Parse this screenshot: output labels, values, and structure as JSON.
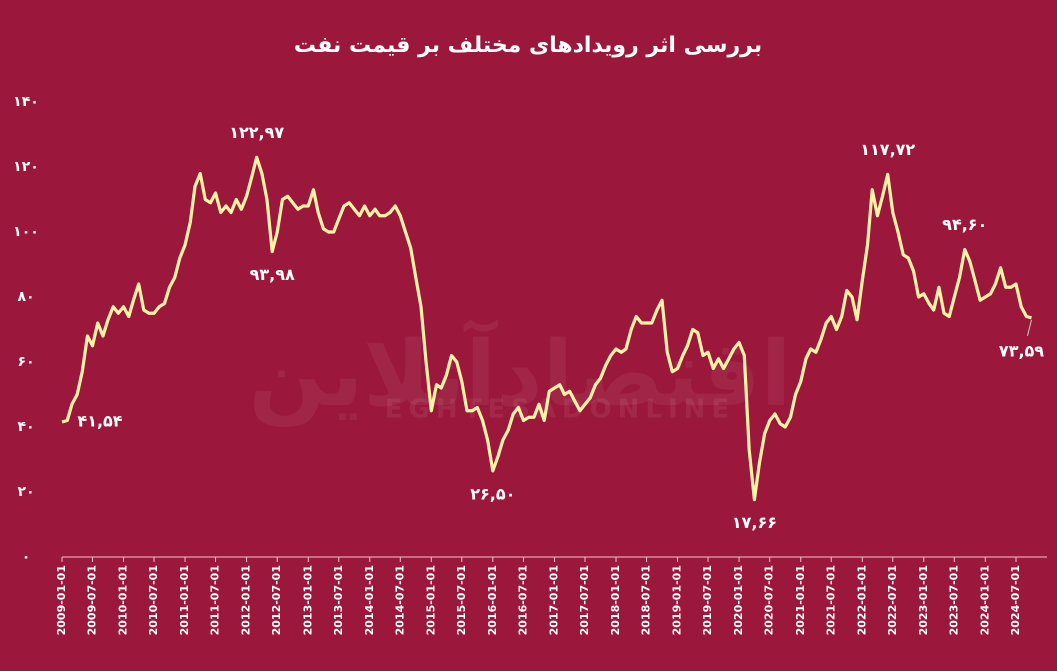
{
  "chart_data": {
    "type": "line",
    "title": "بررسی اثر رویدادهای مختلف بر قیمت نفت",
    "watermark": "اقتصادآنلاین",
    "watermark_en": "EGHTESADONLINE",
    "x": [
      "2009-01-01",
      "2009-02-01",
      "2009-03-01",
      "2009-04-01",
      "2009-05-01",
      "2009-06-01",
      "2009-07-01",
      "2009-08-01",
      "2009-09-01",
      "2009-10-01",
      "2009-11-01",
      "2009-12-01",
      "2010-01-01",
      "2010-02-01",
      "2010-03-01",
      "2010-04-01",
      "2010-05-01",
      "2010-06-01",
      "2010-07-01",
      "2010-08-01",
      "2010-09-01",
      "2010-10-01",
      "2010-11-01",
      "2010-12-01",
      "2011-01-01",
      "2011-02-01",
      "2011-03-01",
      "2011-04-01",
      "2011-05-01",
      "2011-06-01",
      "2011-07-01",
      "2011-08-01",
      "2011-09-01",
      "2011-10-01",
      "2011-11-01",
      "2011-12-01",
      "2012-01-01",
      "2012-02-01",
      "2012-03-01",
      "2012-04-01",
      "2012-05-01",
      "2012-06-01",
      "2012-07-01",
      "2012-08-01",
      "2012-09-01",
      "2012-10-01",
      "2012-11-01",
      "2012-12-01",
      "2013-01-01",
      "2013-02-01",
      "2013-03-01",
      "2013-04-01",
      "2013-05-01",
      "2013-06-01",
      "2013-07-01",
      "2013-08-01",
      "2013-09-01",
      "2013-10-01",
      "2013-11-01",
      "2013-12-01",
      "2014-01-01",
      "2014-02-01",
      "2014-03-01",
      "2014-04-01",
      "2014-05-01",
      "2014-06-01",
      "2014-07-01",
      "2014-08-01",
      "2014-09-01",
      "2014-10-01",
      "2014-11-01",
      "2014-12-01",
      "2015-01-01",
      "2015-02-01",
      "2015-03-01",
      "2015-04-01",
      "2015-05-01",
      "2015-06-01",
      "2015-07-01",
      "2015-08-01",
      "2015-09-01",
      "2015-10-01",
      "2015-11-01",
      "2015-12-01",
      "2016-01-01",
      "2016-02-01",
      "2016-03-01",
      "2016-04-01",
      "2016-05-01",
      "2016-06-01",
      "2016-07-01",
      "2016-08-01",
      "2016-09-01",
      "2016-10-01",
      "2016-11-01",
      "2016-12-01",
      "2017-01-01",
      "2017-02-01",
      "2017-03-01",
      "2017-04-01",
      "2017-05-01",
      "2017-06-01",
      "2017-07-01",
      "2017-08-01",
      "2017-09-01",
      "2017-10-01",
      "2017-11-01",
      "2017-12-01",
      "2018-01-01",
      "2018-02-01",
      "2018-03-01",
      "2018-04-01",
      "2018-05-01",
      "2018-06-01",
      "2018-07-01",
      "2018-08-01",
      "2018-09-01",
      "2018-10-01",
      "2018-11-01",
      "2018-12-01",
      "2019-01-01",
      "2019-02-01",
      "2019-03-01",
      "2019-04-01",
      "2019-05-01",
      "2019-06-01",
      "2019-07-01",
      "2019-08-01",
      "2019-09-01",
      "2019-10-01",
      "2019-11-01",
      "2019-12-01",
      "2020-01-01",
      "2020-02-01",
      "2020-03-01",
      "2020-04-01",
      "2020-05-01",
      "2020-06-01",
      "2020-07-01",
      "2020-08-01",
      "2020-09-01",
      "2020-10-01",
      "2020-11-01",
      "2020-12-01",
      "2021-01-01",
      "2021-02-01",
      "2021-03-01",
      "2021-04-01",
      "2021-05-01",
      "2021-06-01",
      "2021-07-01",
      "2021-08-01",
      "2021-09-01",
      "2021-10-01",
      "2021-11-01",
      "2021-12-01",
      "2022-01-01",
      "2022-02-01",
      "2022-03-01",
      "2022-04-01",
      "2022-05-01",
      "2022-06-01",
      "2022-07-01",
      "2022-08-01",
      "2022-09-01",
      "2022-10-01",
      "2022-11-01",
      "2022-12-01",
      "2023-01-01",
      "2023-02-01",
      "2023-03-01",
      "2023-04-01",
      "2023-05-01",
      "2023-06-01",
      "2023-07-01",
      "2023-08-01",
      "2023-09-01",
      "2023-10-01",
      "2023-11-01",
      "2023-12-01",
      "2024-01-01",
      "2024-02-01",
      "2024-03-01",
      "2024-04-01",
      "2024-05-01",
      "2024-06-01",
      "2024-07-01",
      "2024-08-01",
      "2024-09-01",
      "2024-10-01"
    ],
    "series": [
      {
        "color": "#fff3a8",
        "values": [
          41.54,
          42,
          47,
          50,
          57,
          68,
          65,
          72,
          68,
          73,
          77,
          75,
          77,
          74,
          79,
          84,
          76,
          75,
          75,
          77,
          78,
          83,
          86,
          92,
          96,
          103,
          114,
          118,
          110,
          109,
          112,
          106,
          108,
          106,
          110,
          107,
          111,
          117,
          122.97,
          118,
          110,
          93.98,
          100,
          110,
          111,
          109,
          107,
          108,
          108,
          113,
          106,
          101,
          100,
          100,
          104,
          108,
          109,
          107,
          105,
          108,
          105,
          107,
          105,
          105,
          106,
          108,
          105,
          100,
          95,
          86,
          77,
          60,
          45,
          53,
          52,
          56,
          62,
          60,
          54,
          45,
          45,
          46,
          42,
          36,
          26.5,
          31,
          36,
          39,
          44,
          46,
          42,
          43,
          43,
          47,
          42,
          51,
          52,
          53,
          50,
          51,
          48,
          45,
          47,
          49,
          53,
          55,
          59,
          62,
          64,
          63,
          64,
          70,
          74,
          72,
          72,
          72,
          76,
          79,
          63,
          57,
          58,
          62,
          65,
          70,
          69,
          62,
          63,
          58,
          61,
          58,
          61,
          64,
          66,
          62,
          33,
          17.66,
          29,
          38,
          42,
          44,
          41,
          40,
          43,
          50,
          54,
          61,
          64,
          63,
          67,
          72,
          74,
          70,
          74,
          82,
          80,
          73,
          85,
          96,
          113,
          105,
          111,
          117.72,
          106,
          100,
          93,
          92,
          88,
          80,
          81,
          78,
          76,
          83,
          75,
          74,
          80,
          86,
          94.6,
          91,
          85,
          79,
          80,
          81,
          84,
          89,
          83,
          83,
          84,
          77,
          74,
          73.59
        ],
        "value_labels": [
          "۴۱,۵۴",
          null,
          null,
          null,
          null,
          null,
          null,
          null,
          null,
          null,
          null,
          null,
          null,
          null,
          null,
          null,
          null,
          null,
          null,
          null,
          null,
          null,
          null,
          null,
          null,
          null,
          null,
          null,
          null,
          null,
          null,
          null,
          null,
          null,
          null,
          null,
          null,
          null,
          "۱۲۲,۹۷",
          null,
          null,
          "۹۳,۹۸",
          null,
          null,
          null,
          null,
          null,
          null,
          null,
          null,
          null,
          null,
          null,
          null,
          null,
          null,
          null,
          null,
          null,
          null,
          null,
          null,
          null,
          null,
          null,
          null,
          null,
          null,
          null,
          null,
          null,
          null,
          null,
          null,
          null,
          null,
          null,
          null,
          null,
          null,
          null,
          null,
          null,
          null,
          "۲۶,۵۰",
          null,
          null,
          null,
          null,
          null,
          null,
          null,
          null,
          null,
          null,
          null,
          null,
          null,
          null,
          null,
          null,
          null,
          null,
          null,
          null,
          null,
          null,
          null,
          null,
          null,
          null,
          null,
          null,
          null,
          null,
          null,
          null,
          null,
          null,
          null,
          null,
          null,
          null,
          null,
          null,
          null,
          null,
          null,
          null,
          null,
          null,
          null,
          null,
          null,
          null,
          "۱۷,۶۶",
          null,
          null,
          null,
          null,
          null,
          null,
          null,
          null,
          null,
          null,
          null,
          null,
          null,
          null,
          null,
          null,
          null,
          null,
          null,
          null,
          null,
          null,
          null,
          null,
          null,
          "۱۱۷,۷۲",
          null,
          null,
          null,
          null,
          null,
          null,
          null,
          null,
          null,
          null,
          null,
          null,
          null,
          null,
          "۹۴,۶۰",
          null,
          null,
          null,
          null,
          null,
          null,
          null,
          null,
          null,
          null,
          null,
          null,
          "۷۳,۵۹"
        ]
      }
    ],
    "xlim": [
      "2009-01-01",
      "2025-01-01"
    ],
    "xticks": [
      "2009-01-01",
      "2009-07-01",
      "2010-01-01",
      "2010-07-01",
      "2011-01-01",
      "2011-07-01",
      "2012-01-01",
      "2012-07-01",
      "2013-01-01",
      "2013-07-01",
      "2014-01-01",
      "2014-07-01",
      "2015-01-01",
      "2015-07-01",
      "2016-01-01",
      "2016-07-01",
      "2017-01-01",
      "2017-07-01",
      "2018-01-01",
      "2018-07-01",
      "2019-01-01",
      "2019-07-01",
      "2020-01-01",
      "2020-07-01",
      "2021-01-01",
      "2021-07-01",
      "2022-01-01",
      "2022-07-01",
      "2023-01-01",
      "2023-07-01",
      "2024-01-01",
      "2024-07-01"
    ],
    "ylim": [
      0,
      140
    ],
    "yticks": [
      {
        "value": 0,
        "label": "۰"
      },
      {
        "value": 20,
        "label": "۲۰"
      },
      {
        "value": 40,
        "label": "۴۰"
      },
      {
        "value": 60,
        "label": "۶۰"
      },
      {
        "value": 80,
        "label": "۸۰"
      },
      {
        "value": 100,
        "label": "۱۰۰"
      },
      {
        "value": 120,
        "label": "۱۲۰"
      },
      {
        "value": 140,
        "label": "۱۴۰"
      }
    ],
    "grid": false
  }
}
